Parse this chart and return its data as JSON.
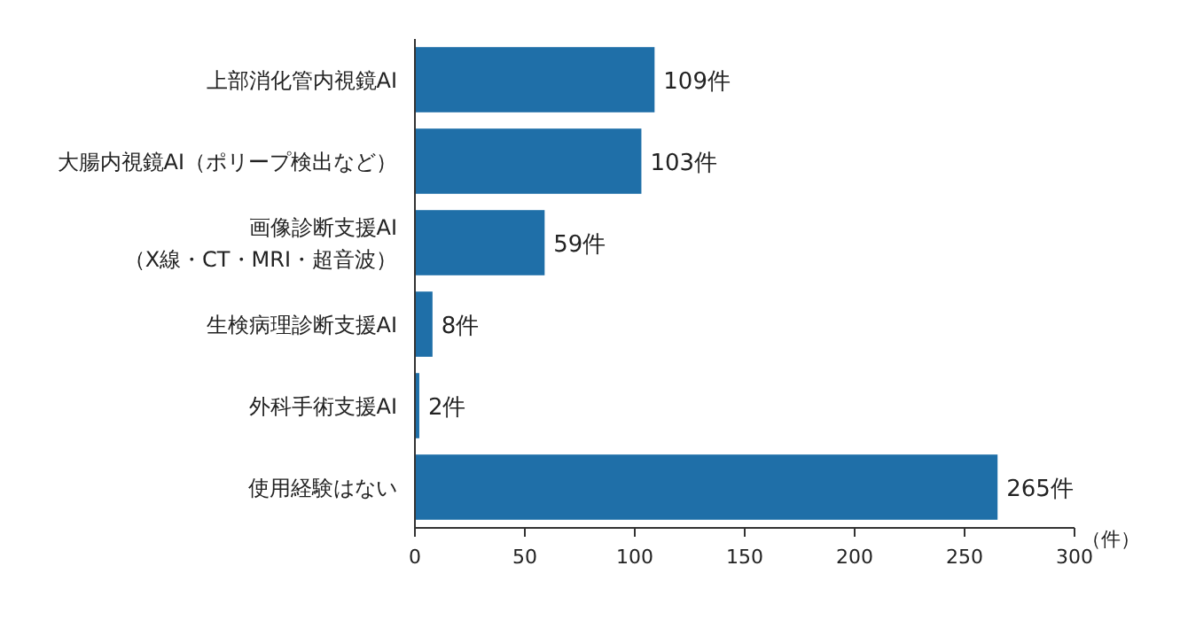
{
  "chart_data": {
    "type": "bar",
    "orientation": "horizontal",
    "categories": [
      "上部消化管内視鏡AI",
      "大腸内視鏡AI（ポリープ検出など）",
      "画像診断支援AI\n（X線・CT・MRI・超音波）",
      "生検病理診断支援AI",
      "外科手術支援AI",
      "使用経験はない"
    ],
    "values": [
      109,
      103,
      59,
      8,
      2,
      265
    ],
    "value_labels": [
      "109件",
      "103件",
      "59件",
      "8件",
      "2件",
      "265件"
    ],
    "color": "#1f6fa8",
    "xlim": [
      0,
      300
    ],
    "xticks": [
      0,
      50,
      100,
      150,
      200,
      250,
      300
    ],
    "xlabel": "（件）"
  }
}
